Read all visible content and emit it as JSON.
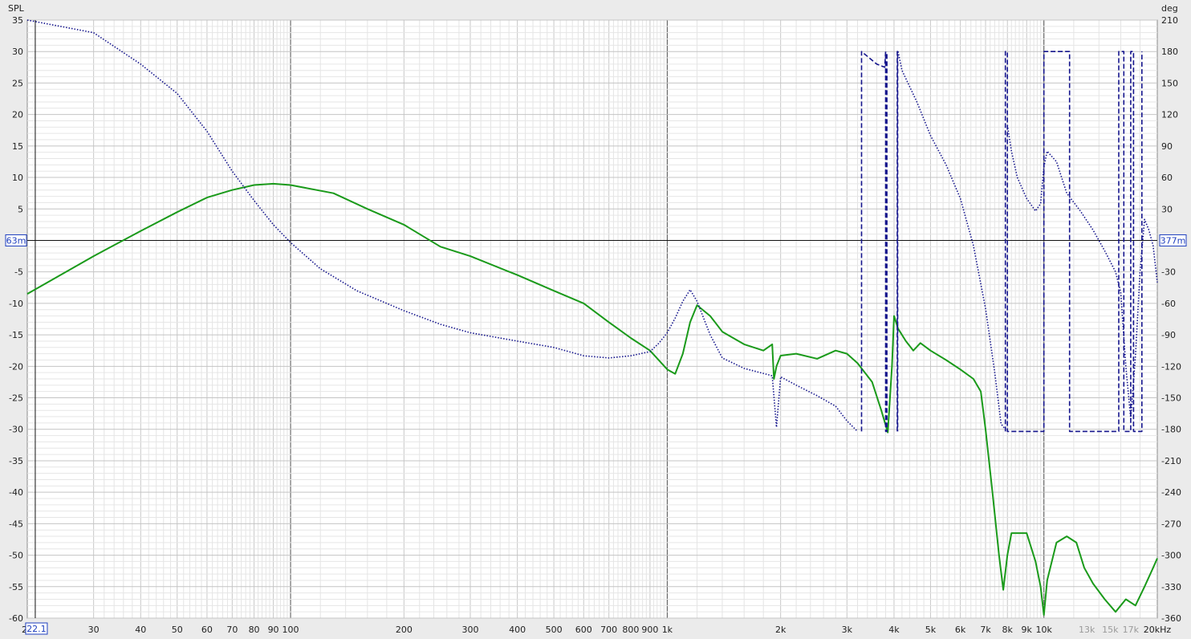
{
  "chart_data": {
    "type": "line",
    "x_scale": "log",
    "xlim": [
      20,
      20000
    ],
    "ylim_left": [
      -60,
      35
    ],
    "ylim_right": [
      -360,
      210
    ],
    "ylabel_left": "SPL",
    "ylabel_right": "deg",
    "x_unit": "kHz",
    "x_ticks": [
      {
        "v": 20,
        "label": "20"
      },
      {
        "v": 30,
        "label": "30"
      },
      {
        "v": 40,
        "label": "40"
      },
      {
        "v": 50,
        "label": "50"
      },
      {
        "v": 60,
        "label": "60"
      },
      {
        "v": 70,
        "label": "70"
      },
      {
        "v": 80,
        "label": "80"
      },
      {
        "v": 90,
        "label": "90"
      },
      {
        "v": 100,
        "label": "100"
      },
      {
        "v": 200,
        "label": "200"
      },
      {
        "v": 300,
        "label": "300"
      },
      {
        "v": 400,
        "label": "400"
      },
      {
        "v": 500,
        "label": "500"
      },
      {
        "v": 600,
        "label": "600"
      },
      {
        "v": 700,
        "label": "700"
      },
      {
        "v": 800,
        "label": "800"
      },
      {
        "v": 900,
        "label": "900"
      },
      {
        "v": 1000,
        "label": "1k"
      },
      {
        "v": 2000,
        "label": "2k"
      },
      {
        "v": 3000,
        "label": "3k"
      },
      {
        "v": 4000,
        "label": "4k"
      },
      {
        "v": 5000,
        "label": "5k"
      },
      {
        "v": 6000,
        "label": "6k"
      },
      {
        "v": 7000,
        "label": "7k"
      },
      {
        "v": 8000,
        "label": "8k"
      },
      {
        "v": 9000,
        "label": "9k"
      },
      {
        "v": 10000,
        "label": "10k"
      },
      {
        "v": 13000,
        "label": "13k",
        "faded": true
      },
      {
        "v": 15000,
        "label": "15k",
        "faded": true
      },
      {
        "v": 17000,
        "label": "17k",
        "faded": true
      }
    ],
    "y_ticks_left": [
      35,
      30,
      25,
      20,
      15,
      10,
      5,
      0,
      -5,
      -10,
      -15,
      -20,
      -25,
      -30,
      -35,
      -40,
      -45,
      -50,
      -55,
      -60
    ],
    "y_ticks_right": [
      210,
      180,
      150,
      120,
      90,
      60,
      30,
      0,
      -30,
      -60,
      -90,
      -120,
      -150,
      -180,
      -210,
      -240,
      -270,
      -300,
      -330,
      -360
    ],
    "cursor": {
      "freq": 21,
      "freq_label": "22.1",
      "level_db": 0,
      "left_label": "63m",
      "right_label": "377m"
    },
    "series": [
      {
        "axis": "left",
        "color": "#1a9a1a",
        "style": "solid",
        "points": [
          [
            20,
            -8.5
          ],
          [
            30,
            -2.5
          ],
          [
            40,
            1.5
          ],
          [
            50,
            4.5
          ],
          [
            60,
            6.8
          ],
          [
            70,
            8.0
          ],
          [
            80,
            8.8
          ],
          [
            90,
            9.0
          ],
          [
            100,
            8.8
          ],
          [
            130,
            7.5
          ],
          [
            160,
            5.0
          ],
          [
            200,
            2.5
          ],
          [
            250,
            -1.0
          ],
          [
            300,
            -2.5
          ],
          [
            400,
            -5.5
          ],
          [
            500,
            -8.0
          ],
          [
            600,
            -10.0
          ],
          [
            700,
            -13.0
          ],
          [
            800,
            -15.5
          ],
          [
            900,
            -17.5
          ],
          [
            1000,
            -20.5
          ],
          [
            1050,
            -21.2
          ],
          [
            1100,
            -18.0
          ],
          [
            1150,
            -13.0
          ],
          [
            1200,
            -10.3
          ],
          [
            1300,
            -12.0
          ],
          [
            1400,
            -14.5
          ],
          [
            1600,
            -16.5
          ],
          [
            1800,
            -17.5
          ],
          [
            1900,
            -16.5
          ],
          [
            1920,
            -22.0
          ],
          [
            1950,
            -20.0
          ],
          [
            2000,
            -18.3
          ],
          [
            2200,
            -18.0
          ],
          [
            2500,
            -18.8
          ],
          [
            2800,
            -17.5
          ],
          [
            3000,
            -18.0
          ],
          [
            3200,
            -19.5
          ],
          [
            3500,
            -22.5
          ],
          [
            3700,
            -27.0
          ],
          [
            3850,
            -30.5
          ],
          [
            3950,
            -20.0
          ],
          [
            4000,
            -12.0
          ],
          [
            4100,
            -14.0
          ],
          [
            4300,
            -16.0
          ],
          [
            4500,
            -17.5
          ],
          [
            4700,
            -16.3
          ],
          [
            5000,
            -17.5
          ],
          [
            5500,
            -19.0
          ],
          [
            6000,
            -20.5
          ],
          [
            6500,
            -22.0
          ],
          [
            6800,
            -24.0
          ],
          [
            7000,
            -30.0
          ],
          [
            7300,
            -40.0
          ],
          [
            7600,
            -50.0
          ],
          [
            7800,
            -55.5
          ],
          [
            8000,
            -50.0
          ],
          [
            8200,
            -46.5
          ],
          [
            9000,
            -46.5
          ],
          [
            9500,
            -51.0
          ],
          [
            9800,
            -55.0
          ],
          [
            10000,
            -59.5
          ],
          [
            10200,
            -54.0
          ],
          [
            10800,
            -48.0
          ],
          [
            11500,
            -47.0
          ],
          [
            12200,
            -48.0
          ],
          [
            12800,
            -52.0
          ],
          [
            13500,
            -54.5
          ],
          [
            14500,
            -57.0
          ],
          [
            15500,
            -59.0
          ],
          [
            16500,
            -57.0
          ],
          [
            17500,
            -58.0
          ],
          [
            18500,
            -55.0
          ],
          [
            19500,
            -52.0
          ],
          [
            20000,
            -50.5
          ]
        ]
      },
      {
        "axis": "right",
        "color": "#14148c",
        "style": "dotted",
        "points": [
          [
            20,
            225
          ],
          [
            30,
            198
          ],
          [
            40,
            168
          ],
          [
            50,
            140
          ],
          [
            60,
            104
          ],
          [
            70,
            66
          ],
          [
            80,
            38
          ],
          [
            90,
            15
          ],
          [
            100,
            -2
          ],
          [
            120,
            -27
          ],
          [
            150,
            -48
          ],
          [
            200,
            -67
          ],
          [
            250,
            -80
          ],
          [
            300,
            -88
          ],
          [
            400,
            -96
          ],
          [
            500,
            -102
          ],
          [
            600,
            -110
          ],
          [
            700,
            -112
          ],
          [
            800,
            -110
          ],
          [
            900,
            -106
          ],
          [
            950,
            -98
          ],
          [
            1000,
            -88
          ],
          [
            1050,
            -74
          ],
          [
            1100,
            -58
          ],
          [
            1150,
            -47
          ],
          [
            1200,
            -58
          ],
          [
            1300,
            -90
          ],
          [
            1400,
            -112
          ],
          [
            1600,
            -122
          ],
          [
            1900,
            -129
          ],
          [
            1950,
            -178
          ],
          [
            2000,
            -130
          ],
          [
            2200,
            -138
          ],
          [
            2500,
            -148
          ],
          [
            2800,
            -158
          ],
          [
            3000,
            -172
          ],
          [
            3200,
            -182
          ]
        ]
      },
      {
        "axis": "right",
        "color": "#14148c",
        "style": "dotted",
        "points": [
          [
            4100,
            180
          ],
          [
            4200,
            162
          ],
          [
            4600,
            132
          ],
          [
            5000,
            100
          ],
          [
            5500,
            72
          ],
          [
            6000,
            40
          ],
          [
            6500,
            -5
          ],
          [
            7000,
            -65
          ],
          [
            7400,
            -125
          ],
          [
            7700,
            -175
          ],
          [
            7900,
            -180
          ]
        ]
      },
      {
        "axis": "right",
        "color": "#14148c",
        "style": "dotted",
        "points": [
          [
            8000,
            110
          ],
          [
            8200,
            85
          ],
          [
            8500,
            60
          ],
          [
            9000,
            40
          ],
          [
            9500,
            28
          ],
          [
            9800,
            35
          ],
          [
            10000,
            70
          ],
          [
            10200,
            85
          ],
          [
            10800,
            75
          ],
          [
            11500,
            45
          ],
          [
            12500,
            28
          ],
          [
            13500,
            10
          ],
          [
            14500,
            -10
          ],
          [
            15500,
            -30
          ],
          [
            16000,
            -50
          ],
          [
            16500,
            -120
          ],
          [
            17000,
            -170
          ],
          [
            17500,
            -110
          ],
          [
            18000,
            -30
          ],
          [
            18500,
            20
          ],
          [
            19000,
            10
          ],
          [
            19500,
            -5
          ],
          [
            20000,
            -40
          ]
        ]
      },
      {
        "axis": "right",
        "color": "#14148c",
        "style": "dashed",
        "points": [
          [
            3280,
            -182
          ],
          [
            3280,
            180
          ],
          [
            3600,
            168
          ],
          [
            3780,
            165
          ],
          [
            3800,
            180
          ],
          [
            3800,
            -182
          ],
          [
            3830,
            -182
          ],
          [
            3830,
            180
          ]
        ]
      },
      {
        "axis": "right",
        "color": "#14148c",
        "style": "dashed",
        "points": [
          [
            4080,
            -182
          ],
          [
            4080,
            180
          ],
          [
            4090,
            180
          ],
          [
            4090,
            -182
          ]
        ]
      },
      {
        "axis": "right",
        "color": "#14148c",
        "style": "dashed",
        "points": [
          [
            7900,
            -182
          ],
          [
            7900,
            180
          ],
          [
            8000,
            180
          ],
          [
            8000,
            -182
          ],
          [
            10000,
            -182
          ],
          [
            10000,
            180
          ],
          [
            11700,
            180
          ],
          [
            11700,
            -182
          ],
          [
            15800,
            -182
          ],
          [
            15800,
            180
          ],
          [
            16300,
            180
          ],
          [
            16300,
            -182
          ],
          [
            17000,
            -182
          ],
          [
            17000,
            180
          ],
          [
            17300,
            180
          ],
          [
            17300,
            -182
          ],
          [
            18200,
            -182
          ],
          [
            18200,
            180
          ]
        ]
      }
    ]
  }
}
